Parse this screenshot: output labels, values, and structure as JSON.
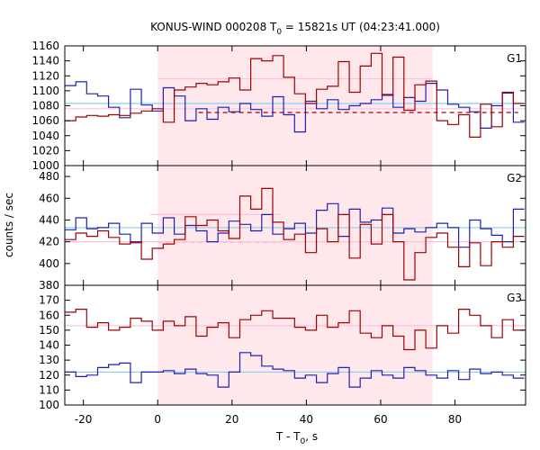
{
  "chart_data": {
    "type": "line",
    "title": "KONUS-WIND 000208 T",
    "title_sub": "0",
    "title_rest": " = 15821s UT (04:23:41.000)",
    "xlabel": "T - T",
    "xlabel_sub": "0",
    "xlabel_rest": ", s",
    "ylabel": "counts / sec",
    "xlim": [
      -25,
      99
    ],
    "xticks": [
      -20,
      0,
      20,
      40,
      60,
      80
    ],
    "x_tick_labels": [
      "-20",
      "0",
      "20",
      "40",
      "60",
      "80"
    ],
    "shaded_interval": [
      0,
      74
    ],
    "colors": {
      "red": "#a00000",
      "blue": "#2020b0",
      "pink": "#ffc0e0",
      "cyan": "#87ceeb",
      "shade": "#ffe8ec"
    },
    "panels": [
      {
        "label": "G1",
        "ylim": [
          1000,
          1160
        ],
        "yticks": [
          1000,
          1020,
          1040,
          1060,
          1080,
          1100,
          1120,
          1140,
          1160
        ],
        "y_tick_labels": [
          "1000",
          "1020",
          "1040",
          "1060",
          "1080",
          "1100",
          "1120",
          "1140",
          "1160"
        ],
        "bin_start": -25,
        "bin_width": 2.944,
        "red_values": [
          1060,
          1065,
          1067,
          1066,
          1068,
          1067,
          1070,
          1073,
          1076,
          1058,
          1101,
          1105,
          1110,
          1108,
          1112,
          1117,
          1101,
          1143,
          1140,
          1147,
          1118,
          1096,
          1083,
          1102,
          1106,
          1139,
          1098,
          1133,
          1150,
          1094,
          1145,
          1074,
          1108,
          1113,
          1060,
          1055,
          1068,
          1038,
          1082,
          1052,
          1097,
          1083
        ],
        "blue_values": [
          1107,
          1112,
          1096,
          1093,
          1078,
          1064,
          1102,
          1081,
          1073,
          1104,
          1093,
          1060,
          1076,
          1062,
          1078,
          1072,
          1083,
          1075,
          1066,
          1092,
          1068,
          1045,
          1086,
          1076,
          1088,
          1075,
          1080,
          1083,
          1088,
          1095,
          1078,
          1091,
          1086,
          1110,
          1101,
          1082,
          1078,
          1072,
          1050,
          1080,
          1098,
          1058
        ],
        "fits": [
          {
            "color": "pink",
            "style": "solid",
            "x0": 0,
            "x1": 74,
            "y": 1116
          },
          {
            "color": "red",
            "style": "dashed",
            "x0": 11,
            "x1": 97,
            "y": 1071
          },
          {
            "color": "cyan",
            "style": "solid",
            "x0": -25,
            "x1": 99,
            "y": 1083
          },
          {
            "color": "pink",
            "style": "solid",
            "x0": -25,
            "x1": 99,
            "y": 1076
          }
        ]
      },
      {
        "label": "G2",
        "ylim": [
          380,
          490
        ],
        "yticks": [
          380,
          400,
          420,
          440,
          460,
          480
        ],
        "y_tick_labels": [
          "380",
          "400",
          "420",
          "440",
          "460",
          "480"
        ],
        "bin_start": -25,
        "bin_width": 2.944,
        "red_values": [
          422,
          428,
          425,
          430,
          424,
          418,
          420,
          404,
          414,
          418,
          422,
          443,
          435,
          440,
          430,
          423,
          462,
          450,
          469,
          438,
          422,
          427,
          410,
          432,
          420,
          445,
          405,
          436,
          418,
          445,
          420,
          385,
          410,
          424,
          428,
          415,
          397,
          419,
          398,
          420,
          415,
          425
        ],
        "blue_values": [
          431,
          442,
          432,
          433,
          437,
          427,
          419,
          437,
          428,
          442,
          427,
          435,
          430,
          420,
          428,
          439,
          436,
          430,
          445,
          427,
          432,
          437,
          428,
          449,
          455,
          425,
          450,
          438,
          440,
          451,
          428,
          432,
          429,
          433,
          437,
          433,
          415,
          440,
          432,
          426,
          420,
          450
        ],
        "fits": [
          {
            "color": "pink",
            "style": "solid",
            "x0": -2,
            "x1": 33,
            "y": 445
          },
          {
            "color": "red",
            "style": "dashed",
            "x0": 0,
            "x1": 33,
            "y": 420
          },
          {
            "color": "cyan",
            "style": "solid",
            "x0": -25,
            "x1": 99,
            "y": 433
          },
          {
            "color": "pink",
            "style": "solid",
            "x0": -25,
            "x1": 99,
            "y": 420
          }
        ]
      },
      {
        "label": "G3",
        "ylim": [
          100,
          180
        ],
        "yticks": [
          100,
          110,
          120,
          130,
          140,
          150,
          160,
          170
        ],
        "y_tick_labels": [
          "100",
          "110",
          "120",
          "130",
          "140",
          "150",
          "160",
          "170"
        ],
        "bin_start": -25,
        "bin_width": 2.944,
        "red_values": [
          162,
          164,
          152,
          155,
          150,
          152,
          158,
          156,
          150,
          156,
          153,
          159,
          146,
          152,
          155,
          145,
          157,
          160,
          163,
          158,
          158,
          152,
          150,
          160,
          152,
          155,
          163,
          148,
          145,
          153,
          146,
          137,
          150,
          138,
          153,
          148,
          164,
          160,
          153,
          145,
          157,
          150
        ],
        "blue_values": [
          122,
          119,
          120,
          125,
          127,
          128,
          115,
          122,
          122,
          123,
          121,
          124,
          121,
          120,
          112,
          122,
          135,
          133,
          126,
          124,
          123,
          118,
          120,
          115,
          121,
          125,
          112,
          118,
          123,
          120,
          118,
          125,
          123,
          120,
          118,
          123,
          117,
          124,
          121,
          122,
          120,
          118
        ],
        "fits": [
          {
            "color": "pink",
            "style": "solid",
            "x0": -25,
            "x1": 99,
            "y": 153
          },
          {
            "color": "cyan",
            "style": "solid",
            "x0": -25,
            "x1": 99,
            "y": 122
          }
        ]
      }
    ]
  }
}
